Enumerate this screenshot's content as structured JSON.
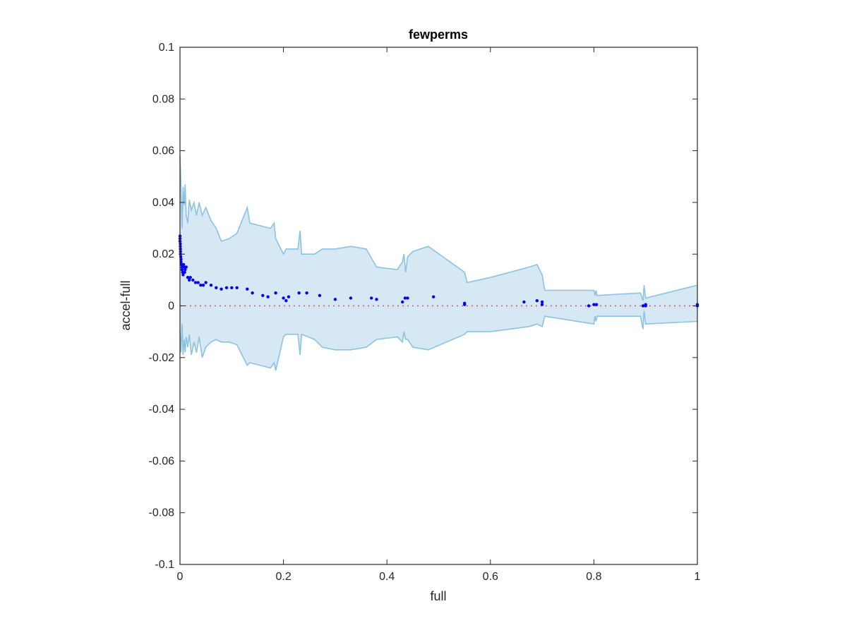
{
  "chart_data": {
    "type": "scatter",
    "title": "fewperms",
    "xlabel": "full",
    "ylabel": "accel-full",
    "xlim": [
      0,
      1
    ],
    "ylim": [
      -0.1,
      0.1
    ],
    "x_ticks": [
      0,
      0.2,
      0.4,
      0.6,
      0.8,
      1
    ],
    "x_tick_labels": [
      "0",
      "0.2",
      "0.4",
      "0.6",
      "0.8",
      "1"
    ],
    "y_ticks": [
      -0.1,
      -0.08,
      -0.06,
      -0.04,
      -0.02,
      0,
      0.02,
      0.04,
      0.06,
      0.08,
      0.1
    ],
    "y_tick_labels": [
      "-0.1",
      "-0.08",
      "-0.06",
      "-0.04",
      "-0.02",
      "0",
      "0.02",
      "0.04",
      "0.06",
      "0.08",
      "0.1"
    ],
    "grid": false,
    "colors": {
      "points": "#0000ff",
      "band_fill": "#d6e8f4",
      "band_edge": "#8cc2e2",
      "reference_line": "#ff4040",
      "axes": "#262626"
    },
    "reference_line": {
      "y": 0,
      "style": "dotted"
    },
    "band_upper": [
      [
        0.0,
        0.058
      ],
      [
        0.002,
        0.046
      ],
      [
        0.004,
        0.03
      ],
      [
        0.006,
        0.046
      ],
      [
        0.008,
        0.039
      ],
      [
        0.01,
        0.047
      ],
      [
        0.012,
        0.035
      ],
      [
        0.015,
        0.032
      ],
      [
        0.018,
        0.041
      ],
      [
        0.022,
        0.037
      ],
      [
        0.027,
        0.04
      ],
      [
        0.032,
        0.035
      ],
      [
        0.037,
        0.04
      ],
      [
        0.043,
        0.035
      ],
      [
        0.05,
        0.038
      ],
      [
        0.06,
        0.033
      ],
      [
        0.07,
        0.03
      ],
      [
        0.08,
        0.025
      ],
      [
        0.095,
        0.026
      ],
      [
        0.11,
        0.028
      ],
      [
        0.13,
        0.038
      ],
      [
        0.135,
        0.032
      ],
      [
        0.175,
        0.03
      ],
      [
        0.182,
        0.032
      ],
      [
        0.185,
        0.026
      ],
      [
        0.2,
        0.02
      ],
      [
        0.205,
        0.022
      ],
      [
        0.228,
        0.022
      ],
      [
        0.232,
        0.029
      ],
      [
        0.235,
        0.02
      ],
      [
        0.26,
        0.02
      ],
      [
        0.275,
        0.022
      ],
      [
        0.3,
        0.022
      ],
      [
        0.33,
        0.023
      ],
      [
        0.36,
        0.022
      ],
      [
        0.38,
        0.015
      ],
      [
        0.42,
        0.014
      ],
      [
        0.43,
        0.017
      ],
      [
        0.433,
        0.02
      ],
      [
        0.436,
        0.013
      ],
      [
        0.44,
        0.019
      ],
      [
        0.45,
        0.021
      ],
      [
        0.48,
        0.023
      ],
      [
        0.55,
        0.013
      ],
      [
        0.555,
        0.009
      ],
      [
        0.6,
        0.011
      ],
      [
        0.675,
        0.015
      ],
      [
        0.69,
        0.016
      ],
      [
        0.7,
        0.012
      ],
      [
        0.705,
        0.006
      ],
      [
        0.8,
        0.006
      ],
      [
        0.802,
        0.004
      ],
      [
        0.804,
        0.006
      ],
      [
        0.806,
        0.004
      ],
      [
        0.89,
        0.005
      ],
      [
        0.895,
        0.002
      ],
      [
        0.897,
        0.008
      ],
      [
        0.9,
        0.003
      ],
      [
        1.0,
        0.008
      ]
    ],
    "band_lower": [
      [
        0.0,
        -0.01
      ],
      [
        0.002,
        -0.018
      ],
      [
        0.004,
        -0.007
      ],
      [
        0.006,
        -0.019
      ],
      [
        0.008,
        -0.013
      ],
      [
        0.01,
        -0.018
      ],
      [
        0.012,
        -0.012
      ],
      [
        0.015,
        -0.016
      ],
      [
        0.018,
        -0.011
      ],
      [
        0.022,
        -0.019
      ],
      [
        0.027,
        -0.014
      ],
      [
        0.032,
        -0.018
      ],
      [
        0.037,
        -0.012
      ],
      [
        0.043,
        -0.02
      ],
      [
        0.05,
        -0.016
      ],
      [
        0.06,
        -0.014
      ],
      [
        0.07,
        -0.013
      ],
      [
        0.08,
        -0.014
      ],
      [
        0.095,
        -0.014
      ],
      [
        0.11,
        -0.015
      ],
      [
        0.13,
        -0.023
      ],
      [
        0.135,
        -0.022
      ],
      [
        0.175,
        -0.024
      ],
      [
        0.182,
        -0.022
      ],
      [
        0.185,
        -0.025
      ],
      [
        0.2,
        -0.012
      ],
      [
        0.205,
        -0.011
      ],
      [
        0.228,
        -0.011
      ],
      [
        0.232,
        -0.019
      ],
      [
        0.235,
        -0.011
      ],
      [
        0.26,
        -0.013
      ],
      [
        0.275,
        -0.016
      ],
      [
        0.3,
        -0.017
      ],
      [
        0.33,
        -0.017
      ],
      [
        0.36,
        -0.016
      ],
      [
        0.38,
        -0.013
      ],
      [
        0.42,
        -0.012
      ],
      [
        0.43,
        -0.014
      ],
      [
        0.433,
        -0.01
      ],
      [
        0.436,
        -0.013
      ],
      [
        0.44,
        -0.013
      ],
      [
        0.45,
        -0.016
      ],
      [
        0.48,
        -0.017
      ],
      [
        0.55,
        -0.011
      ],
      [
        0.555,
        -0.01
      ],
      [
        0.6,
        -0.01
      ],
      [
        0.675,
        -0.008
      ],
      [
        0.69,
        -0.007
      ],
      [
        0.7,
        -0.008
      ],
      [
        0.705,
        -0.004
      ],
      [
        0.8,
        -0.007
      ],
      [
        0.802,
        -0.004
      ],
      [
        0.804,
        -0.006
      ],
      [
        0.806,
        -0.004
      ],
      [
        0.89,
        -0.004
      ],
      [
        0.895,
        -0.009
      ],
      [
        0.897,
        -0.002
      ],
      [
        0.9,
        -0.007
      ],
      [
        1.0,
        -0.006
      ]
    ],
    "points": [
      [
        0.0,
        0.027
      ],
      [
        0.0,
        0.026
      ],
      [
        0.0,
        0.025
      ],
      [
        0.0005,
        0.024
      ],
      [
        0.0005,
        0.023
      ],
      [
        0.0008,
        0.022
      ],
      [
        0.001,
        0.021
      ],
      [
        0.001,
        0.02
      ],
      [
        0.0015,
        0.019
      ],
      [
        0.002,
        0.018
      ],
      [
        0.002,
        0.017
      ],
      [
        0.003,
        0.016
      ],
      [
        0.004,
        0.015
      ],
      [
        0.004,
        0.014
      ],
      [
        0.005,
        0.013
      ],
      [
        0.006,
        0.012
      ],
      [
        0.007,
        0.016
      ],
      [
        0.008,
        0.015
      ],
      [
        0.009,
        0.013
      ],
      [
        0.01,
        0.014
      ],
      [
        0.012,
        0.015
      ],
      [
        0.015,
        0.011
      ],
      [
        0.018,
        0.01
      ],
      [
        0.02,
        0.011
      ],
      [
        0.025,
        0.01
      ],
      [
        0.03,
        0.009
      ],
      [
        0.035,
        0.009
      ],
      [
        0.04,
        0.008
      ],
      [
        0.045,
        0.008
      ],
      [
        0.05,
        0.009
      ],
      [
        0.06,
        0.008
      ],
      [
        0.07,
        0.007
      ],
      [
        0.08,
        0.0065
      ],
      [
        0.09,
        0.007
      ],
      [
        0.1,
        0.007
      ],
      [
        0.11,
        0.007
      ],
      [
        0.13,
        0.0065
      ],
      [
        0.14,
        0.005
      ],
      [
        0.16,
        0.004
      ],
      [
        0.17,
        0.0035
      ],
      [
        0.185,
        0.005
      ],
      [
        0.2,
        0.003
      ],
      [
        0.205,
        0.002
      ],
      [
        0.21,
        0.0035
      ],
      [
        0.23,
        0.005
      ],
      [
        0.245,
        0.005
      ],
      [
        0.27,
        0.004
      ],
      [
        0.3,
        0.0025
      ],
      [
        0.33,
        0.003
      ],
      [
        0.37,
        0.003
      ],
      [
        0.38,
        0.0025
      ],
      [
        0.43,
        0.0015
      ],
      [
        0.435,
        0.003
      ],
      [
        0.44,
        0.003
      ],
      [
        0.49,
        0.0035
      ],
      [
        0.55,
        0.001
      ],
      [
        0.55,
        0.0005
      ],
      [
        0.665,
        0.0015
      ],
      [
        0.69,
        0.002
      ],
      [
        0.7,
        0.0015
      ],
      [
        0.7,
        0.0005
      ],
      [
        0.79,
        0.0
      ],
      [
        0.8,
        0.0005
      ],
      [
        0.805,
        0.0005
      ],
      [
        0.895,
        0.0
      ],
      [
        0.9,
        0.0005
      ],
      [
        0.9,
        0.0
      ],
      [
        1.0,
        0.0005
      ],
      [
        1.0,
        0.0
      ]
    ]
  }
}
